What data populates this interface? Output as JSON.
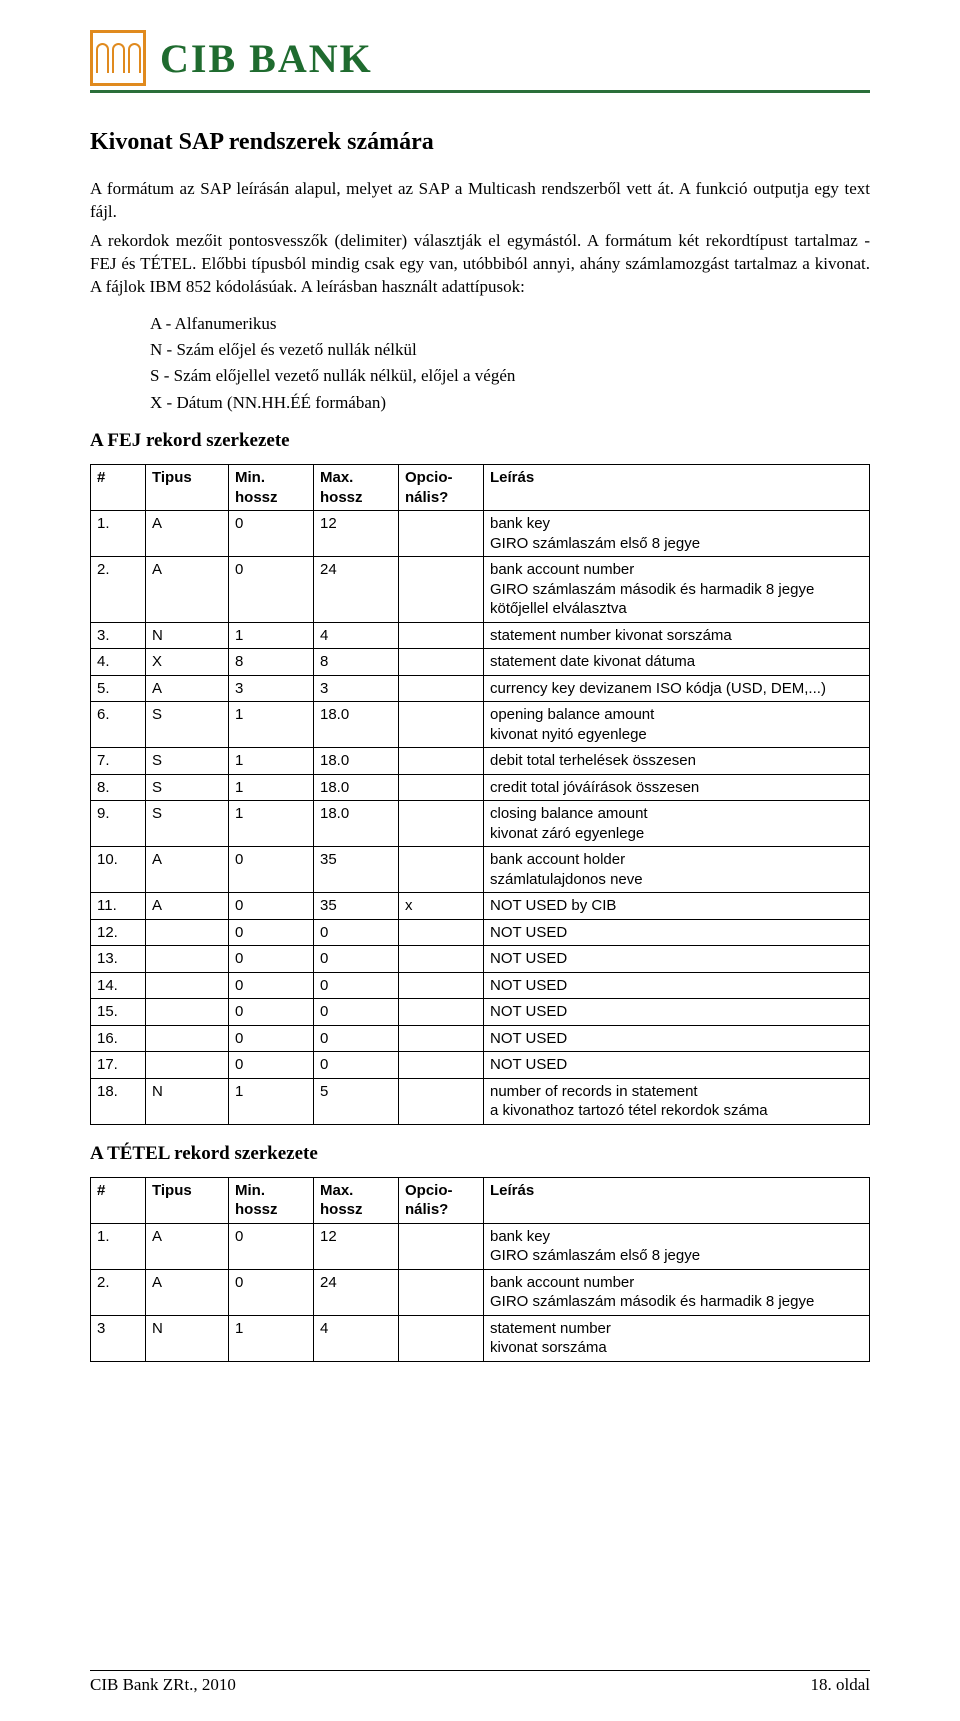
{
  "header": {
    "bank_name": "CIB BANK"
  },
  "title": "Kivonat SAP rendszerek számára",
  "intro_p1": "A formátum az SAP leírásán alapul, melyet az SAP a Multicash rendszerből vett át. A funkció outputja egy text fájl.",
  "intro_p2": "A rekordok mezőit pontosvesszők (delimiter) választják el egymástól. A formátum két rekordtípust tartalmaz - FEJ és TÉTEL. Előbbi típusból mindig csak egy van, utóbbiból annyi, ahány számlamozgást tartalmaz a kivonat. A fájlok IBM 852 kódolásúak. A leírásban használt adattípusok:",
  "types": {
    "a": "A - Alfanumerikus",
    "n": "N - Szám előjel és vezető nullák nélkül",
    "s": "S - Szám előjellel vezető nullák nélkül, előjel a végén",
    "x": "X - Dátum (NN.HH.ÉÉ formában)"
  },
  "section1_title": "A FEJ rekord szerkezete",
  "table_headers": {
    "num": "#",
    "type": "Tipus",
    "min": "Min. hossz",
    "max": "Max. hossz",
    "opt": "Opcio-nális?",
    "desc": "Leírás"
  },
  "fej_rows": [
    {
      "n": "1.",
      "t": "A",
      "min": "0",
      "max": "12",
      "opt": "",
      "d": "bank key\nGIRO számlaszám első 8 jegye"
    },
    {
      "n": "2.",
      "t": "A",
      "min": "0",
      "max": "24",
      "opt": "",
      "d": "bank account number\nGIRO számlaszám második és harmadik 8 jegye kötőjellel elválasztva"
    },
    {
      "n": "3.",
      "t": "N",
      "min": "1",
      "max": "4",
      "opt": "",
      "d": "statement number kivonat sorszáma"
    },
    {
      "n": "4.",
      "t": "X",
      "min": "8",
      "max": "8",
      "opt": "",
      "d": "statement date kivonat dátuma"
    },
    {
      "n": "5.",
      "t": "A",
      "min": "3",
      "max": "3",
      "opt": "",
      "d": "currency key devizanem ISO kódja (USD, DEM,...)"
    },
    {
      "n": "6.",
      "t": "S",
      "min": "1",
      "max": "18.0",
      "opt": "",
      "d": "opening balance amount\nkivonat nyitó egyenlege"
    },
    {
      "n": "7.",
      "t": "S",
      "min": "1",
      "max": "18.0",
      "opt": "",
      "d": "debit total terhelések összesen"
    },
    {
      "n": "8.",
      "t": "S",
      "min": "1",
      "max": "18.0",
      "opt": "",
      "d": "credit total jóváírások összesen"
    },
    {
      "n": "9.",
      "t": "S",
      "min": "1",
      "max": "18.0",
      "opt": "",
      "d": "closing balance amount\nkivonat záró egyenlege"
    },
    {
      "n": "10.",
      "t": "A",
      "min": "0",
      "max": "35",
      "opt": "",
      "d": "bank account holder\nszámlatulajdonos neve"
    },
    {
      "n": "11.",
      "t": "A",
      "min": "0",
      "max": "35",
      "opt": "x",
      "d": "NOT USED by CIB"
    },
    {
      "n": "12.",
      "t": "",
      "min": "0",
      "max": "0",
      "opt": "",
      "d": "NOT USED"
    },
    {
      "n": "13.",
      "t": "",
      "min": "0",
      "max": "0",
      "opt": "",
      "d": "NOT USED"
    },
    {
      "n": "14.",
      "t": "",
      "min": "0",
      "max": "0",
      "opt": "",
      "d": "NOT USED"
    },
    {
      "n": "15.",
      "t": "",
      "min": "0",
      "max": "0",
      "opt": "",
      "d": "NOT USED"
    },
    {
      "n": "16.",
      "t": "",
      "min": "0",
      "max": "0",
      "opt": "",
      "d": "NOT USED"
    },
    {
      "n": "17.",
      "t": "",
      "min": "0",
      "max": "0",
      "opt": "",
      "d": "NOT USED"
    },
    {
      "n": "18.",
      "t": "N",
      "min": "1",
      "max": "5",
      "opt": "",
      "d": "number of records in statement\na kivonathoz tartozó tétel rekordok száma"
    }
  ],
  "section2_title": "A TÉTEL rekord szerkezete",
  "tetel_rows": [
    {
      "n": "1.",
      "t": "A",
      "min": "0",
      "max": "12",
      "opt": "",
      "d": "bank key\nGIRO számlaszám első 8 jegye"
    },
    {
      "n": "2.",
      "t": "A",
      "min": "0",
      "max": "24",
      "opt": "",
      "d": "bank account number\nGIRO számlaszám második és harmadik 8 jegye"
    },
    {
      "n": "3",
      "t": "N",
      "min": "1",
      "max": "4",
      "opt": "",
      "d": "statement number\nkivonat sorszáma"
    }
  ],
  "footer": {
    "left": "CIB Bank ZRt., 2010",
    "right": "18. oldal"
  }
}
